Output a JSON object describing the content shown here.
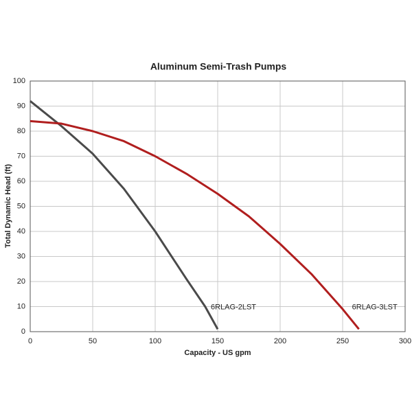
{
  "chart_data": {
    "type": "line",
    "title": "Aluminum Semi-Trash Pumps",
    "x_label": "Capacity - US gpm",
    "y_label": "Total Dynamic Head (ft)",
    "xlim": [
      0,
      300
    ],
    "xticks": [
      0,
      50,
      100,
      150,
      200,
      250,
      300
    ],
    "ylim": [
      0,
      100
    ],
    "yticks": [
      0,
      10,
      20,
      30,
      40,
      50,
      60,
      70,
      80,
      90,
      100
    ],
    "grid": true,
    "series": [
      {
        "name": "6RLAG-2LST",
        "color": "#4a4a4a",
        "x": [
          0,
          10,
          25,
          50,
          75,
          100,
          125,
          140,
          150
        ],
        "values": [
          92,
          88,
          82,
          71,
          57,
          40,
          21,
          10,
          1
        ]
      },
      {
        "name": "6RLAG-3LST",
        "color": "#b01e1e",
        "x": [
          0,
          25,
          50,
          75,
          100,
          125,
          150,
          175,
          200,
          225,
          250,
          263
        ],
        "values": [
          84,
          83,
          80,
          76,
          70,
          63,
          55,
          46,
          35,
          23,
          9,
          1
        ]
      }
    ]
  }
}
